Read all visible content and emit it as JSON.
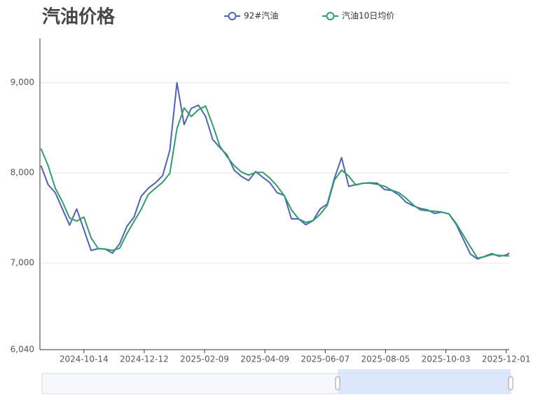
{
  "chart_data": {
    "type": "line",
    "title": "汽油价格",
    "x": [
      "2024-09-02",
      "2024-09-09",
      "2024-09-16",
      "2024-09-23",
      "2024-09-30",
      "2024-10-07",
      "2024-10-14",
      "2024-10-21",
      "2024-10-28",
      "2024-11-04",
      "2024-11-11",
      "2024-11-18",
      "2024-11-25",
      "2024-12-02",
      "2024-12-09",
      "2024-12-16",
      "2024-12-23",
      "2024-12-30",
      "2025-01-06",
      "2025-01-13",
      "2025-01-20",
      "2025-01-27",
      "2025-02-03",
      "2025-02-10",
      "2025-02-17",
      "2025-02-24",
      "2025-03-03",
      "2025-03-10",
      "2025-03-17",
      "2025-03-24",
      "2025-03-31",
      "2025-04-07",
      "2025-04-14",
      "2025-04-21",
      "2025-04-28",
      "2025-05-05",
      "2025-05-12",
      "2025-05-19",
      "2025-05-26",
      "2025-06-02",
      "2025-06-09",
      "2025-06-16",
      "2025-06-23",
      "2025-06-30",
      "2025-07-07",
      "2025-07-14",
      "2025-07-21",
      "2025-07-28",
      "2025-08-04",
      "2025-08-11",
      "2025-08-18",
      "2025-08-25",
      "2025-09-01",
      "2025-09-08",
      "2025-09-15",
      "2025-09-22",
      "2025-09-29",
      "2025-10-06",
      "2025-10-13",
      "2025-10-20",
      "2025-10-27",
      "2025-11-03",
      "2025-11-10",
      "2025-11-17",
      "2025-11-24",
      "2025-12-01",
      "2025-12-04"
    ],
    "series": [
      {
        "name": "92#汽油",
        "color": "#4e63b8",
        "values": [
          8080,
          7870,
          7780,
          7600,
          7420,
          7600,
          7370,
          7140,
          7160,
          7155,
          7110,
          7215,
          7405,
          7510,
          7740,
          7830,
          7890,
          7970,
          8250,
          9000,
          8535,
          8715,
          8750,
          8625,
          8370,
          8280,
          8200,
          8030,
          7960,
          7915,
          8015,
          7950,
          7890,
          7780,
          7750,
          7490,
          7490,
          7425,
          7470,
          7600,
          7655,
          7940,
          8170,
          7850,
          7870,
          7885,
          7890,
          7885,
          7815,
          7805,
          7755,
          7675,
          7635,
          7605,
          7590,
          7550,
          7565,
          7545,
          7430,
          7265,
          7100,
          7045,
          7075,
          7105,
          7075,
          7090,
          7110
        ]
      },
      {
        "name": "汽油10日均价",
        "color": "#2e9e6b",
        "values": [
          8270,
          8080,
          7830,
          7680,
          7500,
          7465,
          7510,
          7280,
          7160,
          7155,
          7140,
          7165,
          7325,
          7460,
          7595,
          7760,
          7830,
          7895,
          7995,
          8490,
          8720,
          8625,
          8700,
          8740,
          8530,
          8295,
          8180,
          8080,
          8010,
          7975,
          8005,
          8005,
          7940,
          7855,
          7745,
          7590,
          7490,
          7450,
          7470,
          7540,
          7640,
          7920,
          8030,
          7965,
          7865,
          7885,
          7885,
          7872,
          7852,
          7808,
          7780,
          7720,
          7645,
          7590,
          7580,
          7575,
          7565,
          7545,
          7440,
          7310,
          7180,
          7055,
          7070,
          7095,
          7085,
          7080,
          7080
        ]
      }
    ],
    "xlim": [
      "2024-09-01",
      "2025-12-04"
    ],
    "xticks": [
      "2024-10-14",
      "2024-12-12",
      "2025-02-09",
      "2025-04-09",
      "2025-06-07",
      "2025-08-05",
      "2025-10-03",
      "2025-12-01"
    ],
    "ylim": [
      6040,
      9490
    ],
    "yticks": [
      {
        "value": 6040,
        "label": "6,040"
      },
      {
        "value": 7000,
        "label": "7,000"
      },
      {
        "value": 8000,
        "label": "8,000"
      },
      {
        "value": 9000,
        "label": "9,000"
      }
    ],
    "grid": true
  }
}
